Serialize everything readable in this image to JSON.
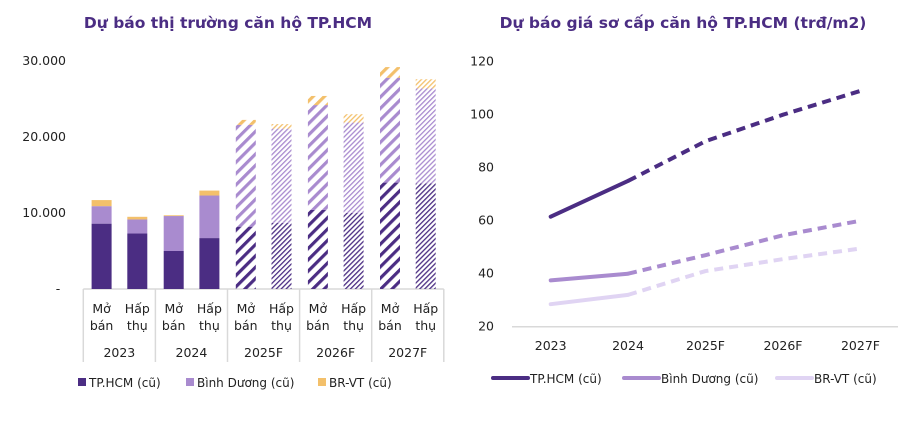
{
  "colors": {
    "hcm": "#4b2d83",
    "bd": "#a98bcf",
    "br_bar": "#f3c06b",
    "br_line": "#e0d4f3"
  },
  "chart_data": [
    {
      "type": "bar",
      "stacked": true,
      "title": "Dự báo thị trường căn hộ TP.HCM",
      "groups": [
        "2023",
        "2024",
        "2025F",
        "2026F",
        "2027F"
      ],
      "subcategories": [
        "Mở bán",
        "Hấp thụ"
      ],
      "subcategory_lines": [
        [
          "Mở",
          "bán"
        ],
        [
          "Hấp",
          "thụ"
        ]
      ],
      "forecast_groups_hatched": [
        "2025F",
        "2026F",
        "2027F"
      ],
      "yticks": [
        "-",
        "10.000",
        "20.000",
        "30.000"
      ],
      "ylim": [
        0,
        30000
      ],
      "grid": false,
      "legend_position": "bottom",
      "series": [
        {
          "name": "TP.HCM (cũ)",
          "values": [
            8600,
            7300,
            5000,
            6700,
            8200,
            8700,
            10400,
            10000,
            14000,
            13900
          ]
        },
        {
          "name": "Bình Dương (cũ)",
          "values": [
            2300,
            1850,
            4600,
            5600,
            13400,
            12400,
            13800,
            11900,
            13800,
            12500
          ]
        },
        {
          "name": "BR-VT (cũ)",
          "values": [
            800,
            350,
            100,
            650,
            650,
            600,
            1200,
            1100,
            1400,
            1200
          ]
        }
      ]
    },
    {
      "type": "line",
      "title": "Dự báo giá sơ cấp căn hộ TP.HCM (trđ/m2)",
      "categories": [
        "2023",
        "2024",
        "2025F",
        "2026F",
        "2027F"
      ],
      "yticks": [
        "20",
        "40",
        "60",
        "80",
        "100",
        "120"
      ],
      "ylim": [
        20,
        120
      ],
      "grid": false,
      "legend_position": "bottom",
      "dashed_from": "2024",
      "series": [
        {
          "name": "TP.HCM (cũ)",
          "values": [
            61.5,
            75,
            90,
            100,
            109
          ]
        },
        {
          "name": "Bình Dương (cũ)",
          "values": [
            37.5,
            40,
            47,
            54.5,
            60
          ]
        },
        {
          "name": "BR-VT (cũ)",
          "values": [
            28.5,
            32,
            41,
            45.5,
            49.5
          ]
        }
      ]
    }
  ]
}
